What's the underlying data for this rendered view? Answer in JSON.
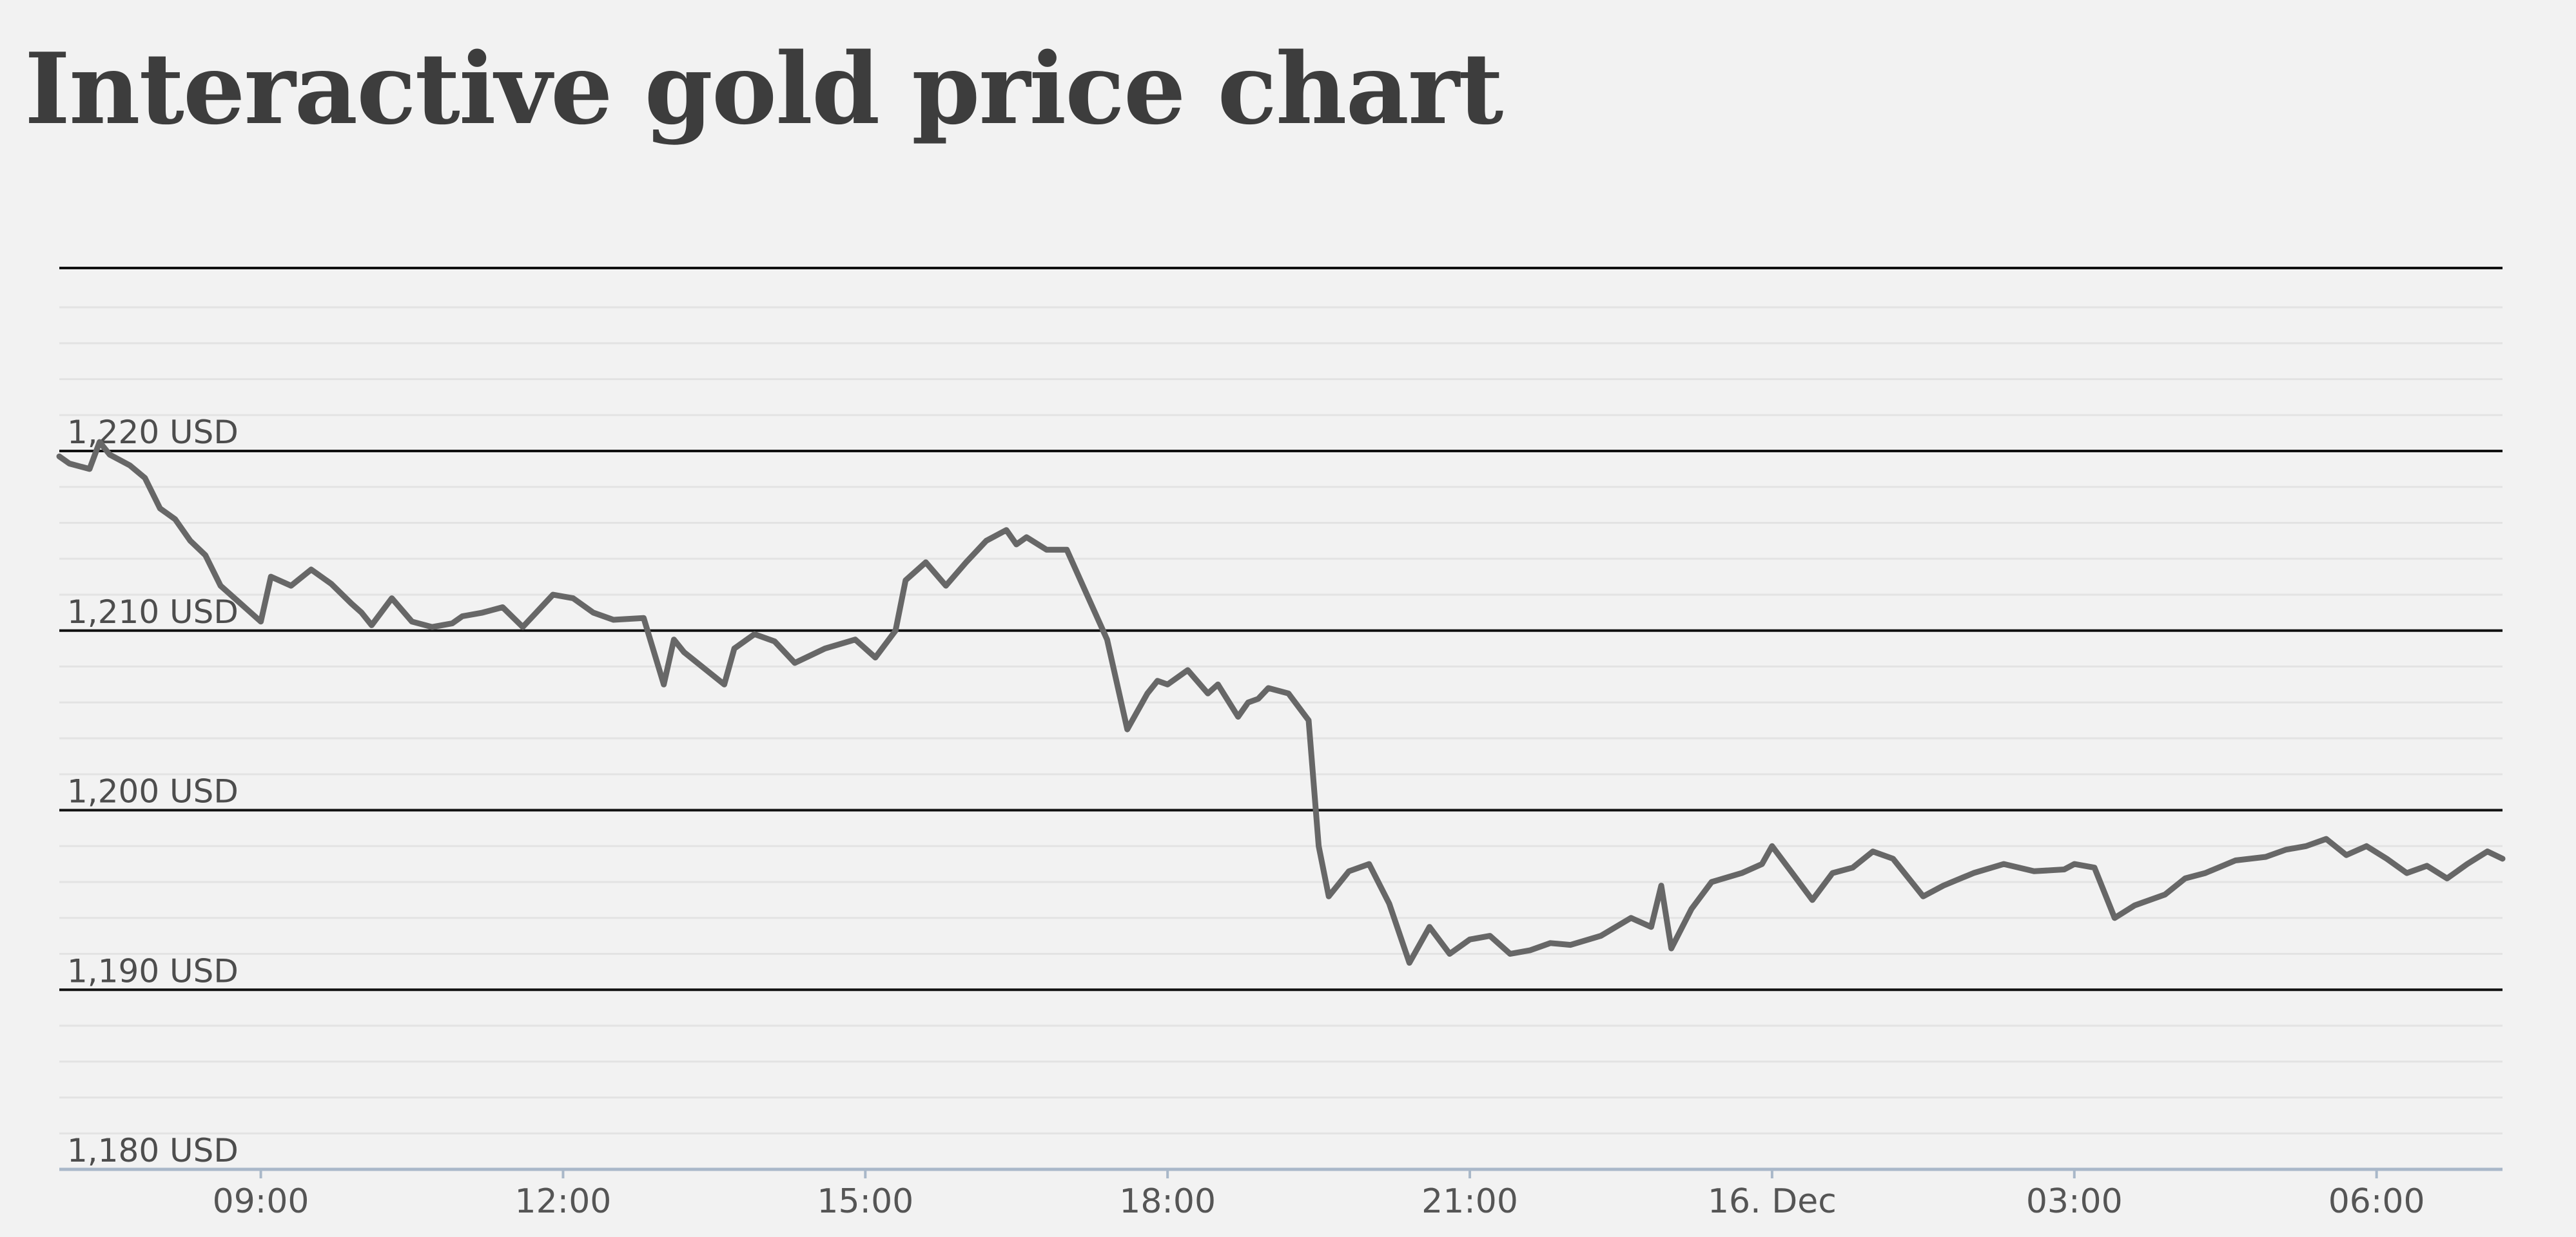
{
  "page": {
    "title": "Interactive gold price chart"
  },
  "chart_data": {
    "type": "line",
    "title": "Interactive gold price chart",
    "xlabel": "",
    "ylabel": "",
    "unit": "USD",
    "ylim": [
      1180,
      1220
    ],
    "y_ticks": [
      {
        "value": 1220,
        "label": "1,220 USD"
      },
      {
        "value": 1210,
        "label": "1,210 USD"
      },
      {
        "value": 1200,
        "label": "1,200 USD"
      },
      {
        "value": 1190,
        "label": "1,190 USD"
      },
      {
        "value": 1180,
        "label": "1,180 USD"
      }
    ],
    "x_range_hours": [
      7.0,
      31.25
    ],
    "x_ticks": [
      {
        "value": 9,
        "label": "09:00"
      },
      {
        "value": 12,
        "label": "12:00"
      },
      {
        "value": 15,
        "label": "15:00"
      },
      {
        "value": 18,
        "label": "18:00"
      },
      {
        "value": 21,
        "label": "21:00"
      },
      {
        "value": 24,
        "label": "16. Dec"
      },
      {
        "value": 27,
        "label": "03:00"
      },
      {
        "value": 30,
        "label": "06:00"
      }
    ],
    "grid": true,
    "legend": "none",
    "colors": {
      "line": "#676767",
      "major_grid": "#111111",
      "minor_grid": "#e3e3e3",
      "axis": "#a9b8c9"
    },
    "series": [
      {
        "x": [
          7.0,
          7.1,
          7.3,
          7.4,
          7.5,
          7.7,
          7.85,
          8.0,
          8.15,
          8.3,
          8.45,
          8.6,
          8.8,
          9.0,
          9.1,
          9.3,
          9.5,
          9.7,
          9.9,
          10.0,
          10.1,
          10.3,
          10.5,
          10.7,
          10.9,
          11.0,
          11.2,
          11.4,
          11.6,
          11.9,
          12.1,
          12.3,
          12.5,
          12.8,
          13.0,
          13.1,
          13.2,
          13.4,
          13.6,
          13.7,
          13.9,
          14.1,
          14.3,
          14.6,
          14.9,
          15.1,
          15.3,
          15.4,
          15.6,
          15.8,
          16.0,
          16.2,
          16.4,
          16.5,
          16.6,
          16.8,
          17.0,
          17.2,
          17.4,
          17.6,
          17.8,
          17.9,
          18.0,
          18.2,
          18.4,
          18.5,
          18.7,
          18.8,
          18.9,
          19.0,
          19.2,
          19.4,
          19.5,
          19.6,
          19.8,
          20.0,
          20.2,
          20.4,
          20.6,
          20.8,
          21.0,
          21.2,
          21.4,
          21.6,
          21.8,
          22.0,
          22.3,
          22.6,
          22.8,
          22.9,
          23.0,
          23.2,
          23.4,
          23.7,
          23.9,
          24.0,
          24.2,
          24.4,
          24.6,
          24.8,
          25.0,
          25.2,
          25.5,
          25.7,
          26.0,
          26.3,
          26.6,
          26.9,
          27.0,
          27.2,
          27.4,
          27.6,
          27.9,
          28.1,
          28.3,
          28.6,
          28.9,
          29.1,
          29.3,
          29.5,
          29.7,
          29.9,
          30.1,
          30.3,
          30.5,
          30.7,
          30.9,
          31.1,
          31.25
        ],
        "values": [
          1219.7,
          1219.3,
          1219.0,
          1220.5,
          1219.8,
          1219.2,
          1218.5,
          1216.8,
          1216.2,
          1215.0,
          1214.2,
          1212.5,
          1211.5,
          1210.5,
          1213.0,
          1212.5,
          1213.4,
          1212.6,
          1211.5,
          1211.0,
          1210.3,
          1211.8,
          1210.5,
          1210.2,
          1210.4,
          1210.8,
          1211.0,
          1211.3,
          1210.2,
          1212.0,
          1211.8,
          1211.0,
          1210.6,
          1210.7,
          1207.0,
          1209.5,
          1208.8,
          1207.9,
          1207.0,
          1209.0,
          1209.8,
          1209.4,
          1208.2,
          1209.0,
          1209.5,
          1208.5,
          1210.0,
          1212.8,
          1213.8,
          1212.5,
          1213.8,
          1215.0,
          1215.6,
          1214.8,
          1215.2,
          1214.5,
          1214.5,
          1212.0,
          1209.5,
          1204.5,
          1206.5,
          1207.2,
          1207.0,
          1207.8,
          1206.5,
          1207.0,
          1205.2,
          1206.0,
          1206.2,
          1206.8,
          1206.5,
          1205.0,
          1198.0,
          1195.2,
          1196.6,
          1197.0,
          1194.8,
          1191.5,
          1193.5,
          1192.0,
          1192.8,
          1193.0,
          1192.0,
          1192.2,
          1192.6,
          1192.5,
          1193.0,
          1194.0,
          1193.5,
          1195.8,
          1192.3,
          1194.5,
          1196.0,
          1196.5,
          1197.0,
          1198.0,
          1196.5,
          1195.0,
          1196.5,
          1196.8,
          1197.7,
          1197.3,
          1195.2,
          1195.8,
          1196.5,
          1197.0,
          1196.6,
          1196.7,
          1197.0,
          1196.8,
          1194.0,
          1194.7,
          1195.3,
          1196.2,
          1196.5,
          1197.2,
          1197.4,
          1197.8,
          1198.0,
          1198.4,
          1197.5,
          1198.0,
          1197.3,
          1196.5,
          1196.9,
          1196.2,
          1197.0,
          1197.7,
          1197.3
        ],
        "min_points": []
      }
    ]
  }
}
